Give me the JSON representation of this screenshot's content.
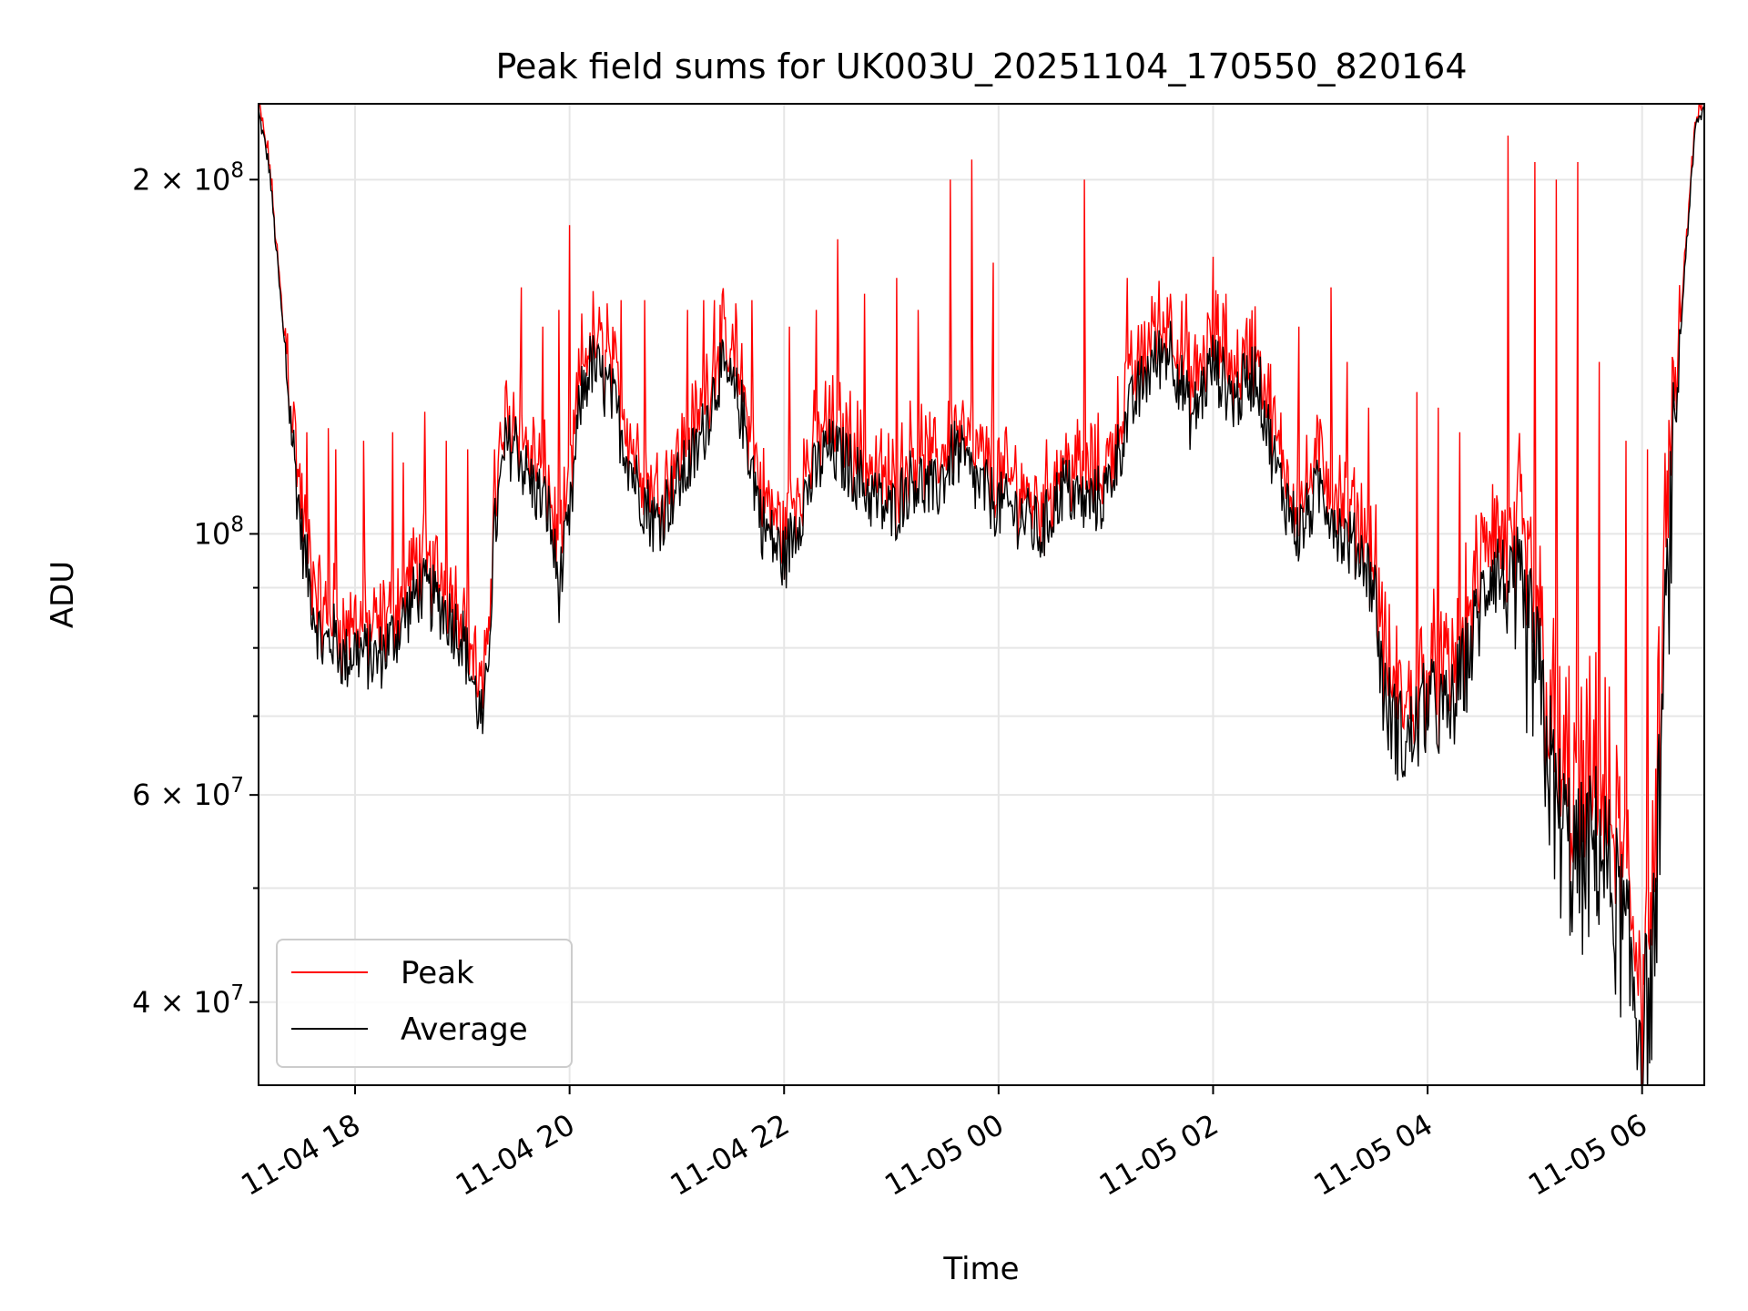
{
  "chart_data": {
    "type": "line",
    "title": "Peak field sums for UK003U_20251104_170550_820164",
    "xlabel": "Time",
    "ylabel": "ADU",
    "yscale": "log",
    "x_unit": "hours since 2025-11-04 00:00",
    "xlim": [
      17.1,
      30.58
    ],
    "ylim": [
      34000000,
      232000000
    ],
    "x_ticks": [
      {
        "value": 18,
        "label": "11-04 18"
      },
      {
        "value": 20,
        "label": "11-04 20"
      },
      {
        "value": 22,
        "label": "11-04 22"
      },
      {
        "value": 24,
        "label": "11-05 00"
      },
      {
        "value": 26,
        "label": "11-05 02"
      },
      {
        "value": 28,
        "label": "11-05 04"
      },
      {
        "value": 30,
        "label": "11-05 06"
      }
    ],
    "y_major_ticks": [
      {
        "value": 100000000,
        "label": "10",
        "exp": "8",
        "mant": ""
      },
      {
        "value": 200000000,
        "label": "2 × 10",
        "exp": "8",
        "mant": "2 × "
      },
      {
        "value": 60000000,
        "label": "6 × 10",
        "exp": "7",
        "mant": "6 × "
      },
      {
        "value": 40000000,
        "label": "4 × 10",
        "exp": "7",
        "mant": "4 × "
      }
    ],
    "y_minor_ticks": [
      50000000,
      70000000,
      80000000,
      90000000
    ],
    "grid": true,
    "legend": {
      "position": "lower-left",
      "entries": [
        {
          "name": "Peak",
          "color": "#ff0000"
        },
        {
          "name": "Average",
          "color": "#000000"
        }
      ]
    },
    "series": [
      {
        "name": "Average",
        "color": "#000000",
        "x": [
          17.1,
          17.2,
          17.3,
          17.4,
          17.5,
          17.6,
          17.7,
          17.8,
          17.9,
          18.0,
          18.2,
          18.4,
          18.6,
          18.8,
          19.0,
          19.2,
          19.3,
          19.4,
          19.5,
          19.6,
          19.8,
          19.9,
          20.0,
          20.1,
          20.2,
          20.4,
          20.6,
          20.8,
          21.0,
          21.2,
          21.4,
          21.6,
          21.8,
          22.0,
          22.2,
          22.4,
          22.6,
          22.8,
          23.0,
          23.2,
          23.4,
          23.6,
          23.8,
          24.0,
          24.2,
          24.4,
          24.6,
          24.8,
          25.0,
          25.2,
          25.4,
          25.6,
          25.8,
          26.0,
          26.2,
          26.4,
          26.6,
          26.8,
          27.0,
          27.2,
          27.4,
          27.5,
          27.6,
          27.8,
          28.0,
          28.2,
          28.4,
          28.6,
          28.8,
          29.0,
          29.2,
          29.4,
          29.6,
          29.8,
          29.9,
          30.0,
          30.1,
          30.2,
          30.3,
          30.4,
          30.5,
          30.58
        ],
        "values": [
          228000000,
          205000000,
          160000000,
          125000000,
          100000000,
          88000000,
          80000000,
          82000000,
          78000000,
          80000000,
          78000000,
          83000000,
          90000000,
          87000000,
          82000000,
          68000000,
          100000000,
          118000000,
          120000000,
          112000000,
          105000000,
          90000000,
          102000000,
          130000000,
          140000000,
          130000000,
          112000000,
          102000000,
          110000000,
          118000000,
          138000000,
          128000000,
          102000000,
          95000000,
          108000000,
          118000000,
          115000000,
          108000000,
          104000000,
          112000000,
          108000000,
          118000000,
          110000000,
          106000000,
          104000000,
          100000000,
          110000000,
          106000000,
          108000000,
          125000000,
          138000000,
          145000000,
          125000000,
          140000000,
          130000000,
          138000000,
          112000000,
          100000000,
          110000000,
          100000000,
          96000000,
          90000000,
          72000000,
          66000000,
          72000000,
          70000000,
          80000000,
          95000000,
          88000000,
          78000000,
          58000000,
          52000000,
          55000000,
          47000000,
          42000000,
          38000000,
          42000000,
          75000000,
          120000000,
          170000000,
          222000000,
          230000000
        ]
      },
      {
        "name": "Peak",
        "color": "#ff0000",
        "spikes": [
          {
            "x": 17.55,
            "value": 122000000
          },
          {
            "x": 17.75,
            "value": 123000000
          },
          {
            "x": 17.82,
            "value": 118000000
          },
          {
            "x": 18.08,
            "value": 120000000
          },
          {
            "x": 18.35,
            "value": 122000000
          },
          {
            "x": 18.45,
            "value": 115000000
          },
          {
            "x": 18.65,
            "value": 127000000
          },
          {
            "x": 18.85,
            "value": 120000000
          },
          {
            "x": 19.05,
            "value": 118000000
          },
          {
            "x": 19.3,
            "value": 118000000
          },
          {
            "x": 19.55,
            "value": 162000000
          },
          {
            "x": 19.75,
            "value": 150000000
          },
          {
            "x": 19.9,
            "value": 155000000
          },
          {
            "x": 20.0,
            "value": 183000000
          },
          {
            "x": 20.2,
            "value": 140000000
          },
          {
            "x": 20.35,
            "value": 157000000
          },
          {
            "x": 20.48,
            "value": 158000000
          },
          {
            "x": 20.7,
            "value": 158000000
          },
          {
            "x": 21.1,
            "value": 155000000
          },
          {
            "x": 21.25,
            "value": 158000000
          },
          {
            "x": 21.35,
            "value": 158000000
          },
          {
            "x": 21.55,
            "value": 157000000
          },
          {
            "x": 21.7,
            "value": 158000000
          },
          {
            "x": 22.05,
            "value": 150000000
          },
          {
            "x": 22.3,
            "value": 155000000
          },
          {
            "x": 22.5,
            "value": 178000000
          },
          {
            "x": 22.75,
            "value": 160000000
          },
          {
            "x": 23.05,
            "value": 165000000
          },
          {
            "x": 23.25,
            "value": 155000000
          },
          {
            "x": 23.55,
            "value": 200000000
          },
          {
            "x": 23.75,
            "value": 208000000
          },
          {
            "x": 23.95,
            "value": 170000000
          },
          {
            "x": 24.8,
            "value": 200000000
          },
          {
            "x": 25.2,
            "value": 165000000
          },
          {
            "x": 25.45,
            "value": 150000000
          },
          {
            "x": 25.75,
            "value": 160000000
          },
          {
            "x": 26.0,
            "value": 172000000
          },
          {
            "x": 26.12,
            "value": 160000000
          },
          {
            "x": 26.4,
            "value": 140000000
          },
          {
            "x": 26.8,
            "value": 150000000
          },
          {
            "x": 27.1,
            "value": 162000000
          },
          {
            "x": 27.25,
            "value": 140000000
          },
          {
            "x": 27.45,
            "value": 128000000
          },
          {
            "x": 27.9,
            "value": 132000000
          },
          {
            "x": 28.1,
            "value": 128000000
          },
          {
            "x": 28.3,
            "value": 122000000
          },
          {
            "x": 28.75,
            "value": 218000000
          },
          {
            "x": 29.0,
            "value": 207000000
          },
          {
            "x": 29.2,
            "value": 200000000
          },
          {
            "x": 29.4,
            "value": 207000000
          },
          {
            "x": 29.6,
            "value": 140000000
          },
          {
            "x": 29.85,
            "value": 120000000
          },
          {
            "x": 30.05,
            "value": 118000000
          },
          {
            "x": 30.25,
            "value": 125000000
          }
        ]
      }
    ]
  }
}
